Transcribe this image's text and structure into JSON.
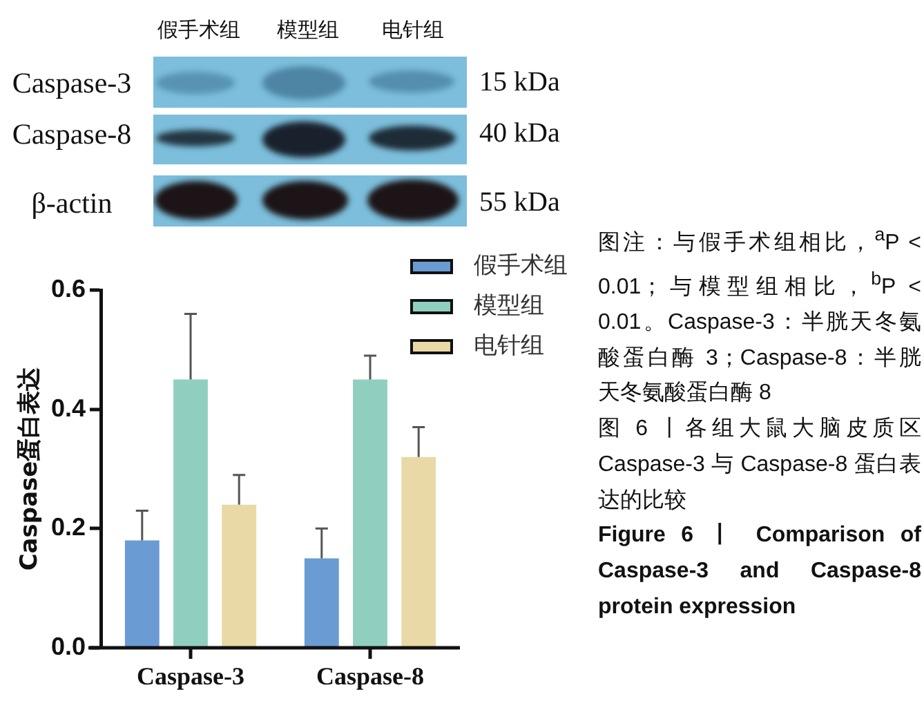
{
  "chart_data": {
    "type": "bar",
    "title": "图 6 丨各组大鼠大脑皮质区 Caspase-3 与 Caspase-8 蛋白表达的比较",
    "subtitle": "Figure 6 丨 Comparison of Caspase-3 and Caspase-8 protein expression",
    "ylabel": "Caspase蛋白表达",
    "categories": [
      "Caspase-3",
      "Caspase-8"
    ],
    "series": [
      {
        "name": "假手术组",
        "color": "#6a9bd3",
        "values": [
          0.18,
          0.15
        ],
        "errors": [
          [
            0.18,
            0.23
          ],
          [
            0.15,
            0.2
          ]
        ]
      },
      {
        "name": "模型组",
        "color": "#90cfbf",
        "values": [
          0.45,
          0.45
        ],
        "errors": [
          [
            0.45,
            0.56
          ],
          [
            0.45,
            0.49
          ]
        ]
      },
      {
        "name": "电针组",
        "color": "#e9d9a7",
        "values": [
          0.24,
          0.32
        ],
        "errors": [
          [
            0.24,
            0.29
          ],
          [
            0.32,
            0.37
          ]
        ]
      }
    ],
    "ylim": [
      0,
      0.6
    ],
    "yticks": [
      {
        "value": 0,
        "label": "0.0"
      },
      0.2,
      0.4,
      0.6
    ],
    "legend": "top right",
    "annotations": [
      "假手术组",
      "模型组",
      "电针组",
      "Caspase-3",
      "Caspase-8",
      "β-actin",
      "15 kDa",
      "40 kDa",
      "55 kDa",
      "图注：与假手术组相比，$^{a}$P < 0.01；与模型组相比，$^{b}$P < 0.01。Caspase-3：半胱天冬氨酸蛋白酶 3；Caspase-8：半胱天冬氨酸蛋白酶 8"
    ]
  }
}
